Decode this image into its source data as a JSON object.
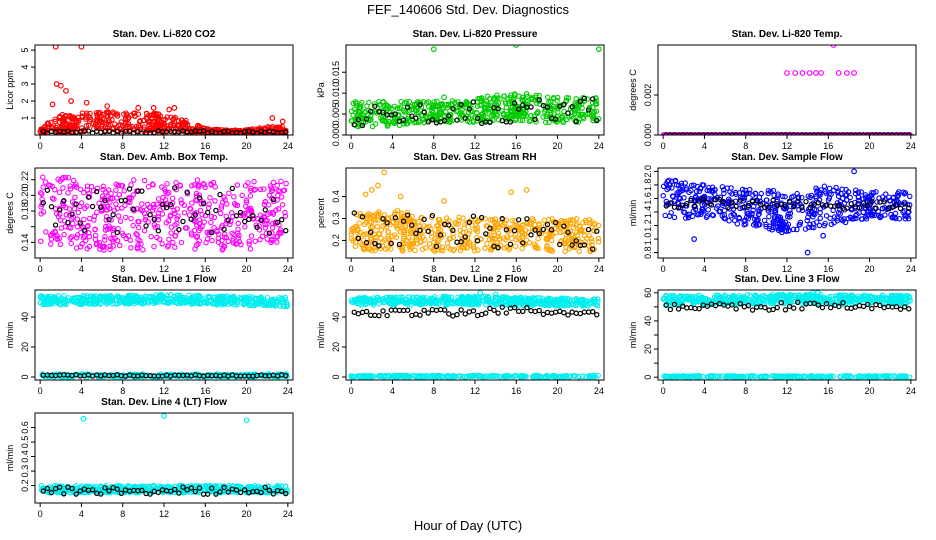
{
  "figure": {
    "title": "FEF_140606  Std. Dev. Diagnostics",
    "xlabel": "Hour of Day (UTC)",
    "colors": {
      "black": "#000000"
    }
  },
  "chart_data": [
    {
      "id": "co2",
      "type": "scatter",
      "title": "Stan. Dev. Li-820 CO2",
      "ylabel": "Licor ppm",
      "color": "#ff0000",
      "xlim": [
        -0.5,
        24.5
      ],
      "ylim": [
        0,
        5.3
      ],
      "yticks": [
        1,
        2,
        3,
        4,
        5
      ],
      "ytick_labels": [
        "1",
        "2",
        "3",
        "4",
        "5"
      ],
      "xticks": [
        0,
        4,
        8,
        12,
        16,
        20,
        24
      ],
      "xtick_labels": [
        "0",
        "4",
        "8",
        "12",
        "16",
        "20",
        "24"
      ],
      "band": [
        [
          0,
          0.1,
          0.3
        ],
        [
          1,
          0.1,
          0.9
        ],
        [
          2,
          0.1,
          1.2
        ],
        [
          4,
          0.2,
          1.3
        ],
        [
          6,
          0.2,
          1.4
        ],
        [
          8,
          0.2,
          1.3
        ],
        [
          10,
          0.2,
          1.4
        ],
        [
          12,
          0.1,
          1.2
        ],
        [
          14,
          0.1,
          0.9
        ],
        [
          16,
          0.1,
          0.4
        ],
        [
          18,
          0.1,
          0.3
        ],
        [
          20,
          0.1,
          0.3
        ],
        [
          22,
          0.1,
          0.5
        ],
        [
          24,
          0.1,
          0.5
        ]
      ],
      "outliers": [
        [
          1.5,
          5.2
        ],
        [
          4.0,
          5.2
        ],
        [
          1.6,
          3.0
        ],
        [
          2.0,
          2.9
        ],
        [
          2.5,
          2.6
        ],
        [
          3.0,
          2.0
        ],
        [
          1.2,
          1.8
        ],
        [
          4.5,
          1.9
        ],
        [
          6.5,
          1.7
        ],
        [
          9.5,
          1.6
        ],
        [
          11.0,
          1.6
        ],
        [
          12.5,
          1.5
        ],
        [
          13.0,
          1.6
        ],
        [
          22.5,
          1.0
        ],
        [
          23.5,
          0.8
        ]
      ],
      "black": [
        [
          0,
          0.1,
          0.25
        ],
        [
          24,
          0.1,
          0.25
        ]
      ]
    },
    {
      "id": "pressure",
      "type": "scatter",
      "title": "Stan. Dev. Li-820 Pressure",
      "ylabel": "kPa",
      "color": "#00cc00",
      "xlim": [
        -0.5,
        24.5
      ],
      "ylim": [
        0,
        0.0215
      ],
      "yticks": [
        0,
        0.005,
        0.01,
        0.015
      ],
      "ytick_labels": [
        "0.000",
        "0.005",
        "0.010",
        "0.015"
      ],
      "xticks": [
        0,
        4,
        8,
        12,
        16,
        20,
        24
      ],
      "xtick_labels": [
        "0",
        "4",
        "8",
        "12",
        "16",
        "20",
        "24"
      ],
      "band": [
        [
          0,
          0.002,
          0.008
        ],
        [
          4,
          0.002,
          0.008
        ],
        [
          8,
          0.003,
          0.008
        ],
        [
          12,
          0.003,
          0.009
        ],
        [
          16,
          0.003,
          0.01
        ],
        [
          20,
          0.003,
          0.009
        ],
        [
          24,
          0.003,
          0.009
        ]
      ],
      "outliers": [
        [
          8.0,
          0.0205
        ],
        [
          16.0,
          0.0215
        ],
        [
          24.0,
          0.0205
        ],
        [
          15.5,
          0.0095
        ],
        [
          17.0,
          0.0098
        ],
        [
          9.0,
          0.009
        ]
      ],
      "black": [
        [
          0,
          0.002,
          0.007
        ],
        [
          24,
          0.003,
          0.009
        ]
      ]
    },
    {
      "id": "temp820",
      "type": "scatter",
      "title": "Stan. Dev. Li-820 Temp.",
      "ylabel": "degrees C",
      "color": "#ff00ff",
      "xlim": [
        -0.5,
        24.5
      ],
      "ylim": [
        0,
        0.0045
      ],
      "yticks": [
        0,
        0.002
      ],
      "ytick_labels": [
        "0.000",
        "0.002"
      ],
      "xticks": [
        0,
        4,
        8,
        12,
        16,
        20,
        24
      ],
      "xtick_labels": [
        "0",
        "4",
        "8",
        "12",
        "16",
        "20",
        "24"
      ],
      "band": [
        [
          0,
          0,
          0
        ],
        [
          24,
          0,
          0
        ]
      ],
      "outliers": [
        [
          12.0,
          0.0031
        ],
        [
          12.8,
          0.0031
        ],
        [
          13.5,
          0.0031
        ],
        [
          14.2,
          0.0031
        ],
        [
          14.8,
          0.0031
        ],
        [
          15.3,
          0.0031
        ],
        [
          16.5,
          0.0045
        ],
        [
          17.0,
          0.0031
        ],
        [
          17.8,
          0.0031
        ],
        [
          18.5,
          0.0031
        ],
        [
          1.0,
          0.0
        ],
        [
          2.5,
          0.0
        ]
      ],
      "black": [
        [
          0,
          0,
          0
        ],
        [
          24,
          0,
          0
        ]
      ]
    },
    {
      "id": "ambtemp",
      "type": "scatter",
      "title": "Stan. Dev. Amb. Box Temp.",
      "ylabel": "degrees C",
      "color": "#ff00ff",
      "xlim": [
        -0.5,
        24.5
      ],
      "ylim": [
        0.12,
        0.235
      ],
      "yticks": [
        0.14,
        0.16,
        0.18,
        0.2,
        0.22
      ],
      "ytick_labels": [
        "0.14",
        "",
        "0.18",
        "0.20",
        "0.22"
      ],
      "xticks": [
        0,
        4,
        8,
        12,
        16,
        20,
        24
      ],
      "xtick_labels": [
        "0",
        "4",
        "8",
        "12",
        "16",
        "20",
        "24"
      ],
      "band": [
        [
          0,
          0.14,
          0.23
        ],
        [
          4,
          0.13,
          0.22
        ],
        [
          8,
          0.13,
          0.22
        ],
        [
          12,
          0.13,
          0.22
        ],
        [
          16,
          0.13,
          0.22
        ],
        [
          20,
          0.13,
          0.22
        ],
        [
          24,
          0.14,
          0.22
        ]
      ],
      "outliers": [],
      "black": [
        [
          0,
          0.15,
          0.21
        ],
        [
          24,
          0.15,
          0.21
        ]
      ]
    },
    {
      "id": "rh",
      "type": "scatter",
      "title": "Stan. Dev. Gas Stream RH",
      "ylabel": "percent",
      "color": "#ffa500",
      "xlim": [
        -0.5,
        24.5
      ],
      "ylim": [
        0.12,
        0.53
      ],
      "yticks": [
        0.2,
        0.3,
        0.4
      ],
      "ytick_labels": [
        "0.2",
        "0.3",
        "0.4"
      ],
      "xticks": [
        0,
        4,
        8,
        12,
        16,
        20,
        24
      ],
      "xtick_labels": [
        "0",
        "4",
        "8",
        "12",
        "16",
        "20",
        "24"
      ],
      "band": [
        [
          0,
          0.15,
          0.32
        ],
        [
          4,
          0.15,
          0.34
        ],
        [
          8,
          0.15,
          0.32
        ],
        [
          12,
          0.15,
          0.3
        ],
        [
          16,
          0.15,
          0.3
        ],
        [
          20,
          0.15,
          0.3
        ],
        [
          24,
          0.15,
          0.3
        ]
      ],
      "outliers": [
        [
          3.2,
          0.51
        ],
        [
          2.6,
          0.45
        ],
        [
          2.0,
          0.43
        ],
        [
          1.4,
          0.41
        ],
        [
          4.8,
          0.4
        ],
        [
          17.0,
          0.43
        ],
        [
          15.5,
          0.42
        ],
        [
          9.0,
          0.38
        ]
      ],
      "black": [
        [
          0,
          0.17,
          0.33
        ],
        [
          24,
          0.16,
          0.3
        ]
      ]
    },
    {
      "id": "sampleflow",
      "type": "scatter",
      "title": "Stan. Dev. Sample Flow",
      "ylabel": "ml/min",
      "color": "#0000ff",
      "xlim": [
        -0.5,
        24.5
      ],
      "ylim": [
        0.72,
        2.05
      ],
      "yticks": [
        0.8,
        1.0,
        1.2,
        1.4,
        1.6,
        1.8,
        2.0
      ],
      "ytick_labels": [
        "0.8",
        "1.0",
        "1.2",
        "1.4",
        "1.6",
        "1.8",
        "2.0"
      ],
      "xticks": [
        0,
        4,
        8,
        12,
        16,
        20,
        24
      ],
      "xtick_labels": [
        "0",
        "4",
        "8",
        "12",
        "16",
        "20",
        "24"
      ],
      "band": [
        [
          0,
          1.3,
          1.9
        ],
        [
          4,
          1.3,
          1.8
        ],
        [
          8,
          1.2,
          1.75
        ],
        [
          12,
          1.1,
          1.7
        ],
        [
          16,
          1.2,
          1.8
        ],
        [
          20,
          1.3,
          1.7
        ],
        [
          24,
          1.3,
          1.7
        ]
      ],
      "outliers": [
        [
          14.0,
          0.8
        ],
        [
          15.5,
          1.05
        ],
        [
          18.5,
          2.0
        ],
        [
          3.0,
          1.0
        ],
        [
          11.5,
          1.1
        ]
      ],
      "black": [
        [
          0,
          1.45,
          1.6
        ],
        [
          24,
          1.45,
          1.55
        ]
      ]
    },
    {
      "id": "line1",
      "type": "scatter",
      "title": "Stan. Dev. Line 1 Flow",
      "ylabel": "ml/min",
      "color": "#00eeee",
      "xlim": [
        -0.5,
        24.5
      ],
      "ylim": [
        -2,
        58
      ],
      "yticks": [
        0,
        20,
        40
      ],
      "ytick_labels": [
        "0",
        "20",
        "40"
      ],
      "xticks": [
        0,
        4,
        8,
        12,
        16,
        20,
        24
      ],
      "xtick_labels": [
        "0",
        "4",
        "8",
        "12",
        "16",
        "20",
        "24"
      ],
      "band": [
        [
          0,
          48,
          54
        ],
        [
          12,
          49,
          55
        ],
        [
          24,
          47,
          53
        ]
      ],
      "band2": [
        [
          0,
          0,
          2
        ],
        [
          24,
          0,
          2
        ]
      ],
      "outliers": [],
      "black": [
        [
          0,
          0.5,
          1.5
        ],
        [
          24,
          0.5,
          1.5
        ]
      ]
    },
    {
      "id": "line2",
      "type": "scatter",
      "title": "Stan. Dev. Line 2 Flow",
      "ylabel": "ml/min",
      "color": "#00eeee",
      "xlim": [
        -0.5,
        24.5
      ],
      "ylim": [
        -2,
        58
      ],
      "yticks": [
        0,
        20,
        40
      ],
      "ytick_labels": [
        "0",
        "20",
        "40"
      ],
      "xticks": [
        0,
        4,
        8,
        12,
        16,
        20,
        24
      ],
      "xtick_labels": [
        "0",
        "4",
        "8",
        "12",
        "16",
        "20",
        "24"
      ],
      "band": [
        [
          0,
          48,
          53
        ],
        [
          12,
          48,
          54
        ],
        [
          24,
          47,
          52
        ]
      ],
      "band2": [
        [
          0,
          0,
          1
        ],
        [
          24,
          0,
          1
        ]
      ],
      "outliers": [
        [
          12.5,
          56
        ],
        [
          14.0,
          55
        ]
      ],
      "black": [
        [
          0,
          40,
          44
        ],
        [
          6,
          41,
          45
        ],
        [
          12,
          40,
          46
        ],
        [
          16,
          42,
          47
        ],
        [
          24,
          40,
          44
        ]
      ]
    },
    {
      "id": "line3",
      "type": "scatter",
      "title": "Stan. Dev. Line 3 Flow",
      "ylabel": "ml/min",
      "color": "#00eeee",
      "xlim": [
        -0.5,
        24.5
      ],
      "ylim": [
        -2,
        62
      ],
      "yticks": [
        0,
        10,
        20,
        30,
        40,
        50,
        60
      ],
      "ytick_labels": [
        "0",
        "",
        "20",
        "",
        "40",
        "",
        "60"
      ],
      "xticks": [
        0,
        4,
        8,
        12,
        16,
        20,
        24
      ],
      "xtick_labels": [
        "0",
        "4",
        "8",
        "12",
        "16",
        "20",
        "24"
      ],
      "band": [
        [
          0,
          51,
          58
        ],
        [
          12,
          52,
          59
        ],
        [
          24,
          52,
          58
        ]
      ],
      "band2": [
        [
          0,
          0,
          1
        ],
        [
          24,
          0,
          1
        ]
      ],
      "outliers": [
        [
          14.5,
          60
        ],
        [
          15.0,
          60
        ]
      ],
      "black": [
        [
          0,
          47,
          52
        ],
        [
          8,
          48,
          53
        ],
        [
          12,
          46,
          53
        ],
        [
          16,
          49,
          54
        ],
        [
          24,
          47,
          51
        ]
      ]
    },
    {
      "id": "line4",
      "type": "scatter",
      "title": "Stan. Dev. Line 4 (LT) Flow",
      "ylabel": "ml/min",
      "color": "#00eeee",
      "xlim": [
        -0.5,
        24.5
      ],
      "ylim": [
        0.08,
        0.7
      ],
      "yticks": [
        0.2,
        0.3,
        0.4,
        0.5,
        0.6
      ],
      "ytick_labels": [
        "0.2",
        "0.3",
        "0.4",
        "0.5",
        "0.6"
      ],
      "xticks": [
        0,
        4,
        8,
        12,
        16,
        20,
        24
      ],
      "xtick_labels": [
        "0",
        "4",
        "8",
        "12",
        "16",
        "20",
        "24"
      ],
      "band": [
        [
          0,
          0.15,
          0.2
        ],
        [
          24,
          0.15,
          0.2
        ]
      ],
      "outliers": [
        [
          4.2,
          0.66
        ],
        [
          12.0,
          0.68
        ],
        [
          20.0,
          0.65
        ]
      ],
      "black": [
        [
          0,
          0.14,
          0.19
        ],
        [
          24,
          0.14,
          0.19
        ]
      ]
    }
  ]
}
